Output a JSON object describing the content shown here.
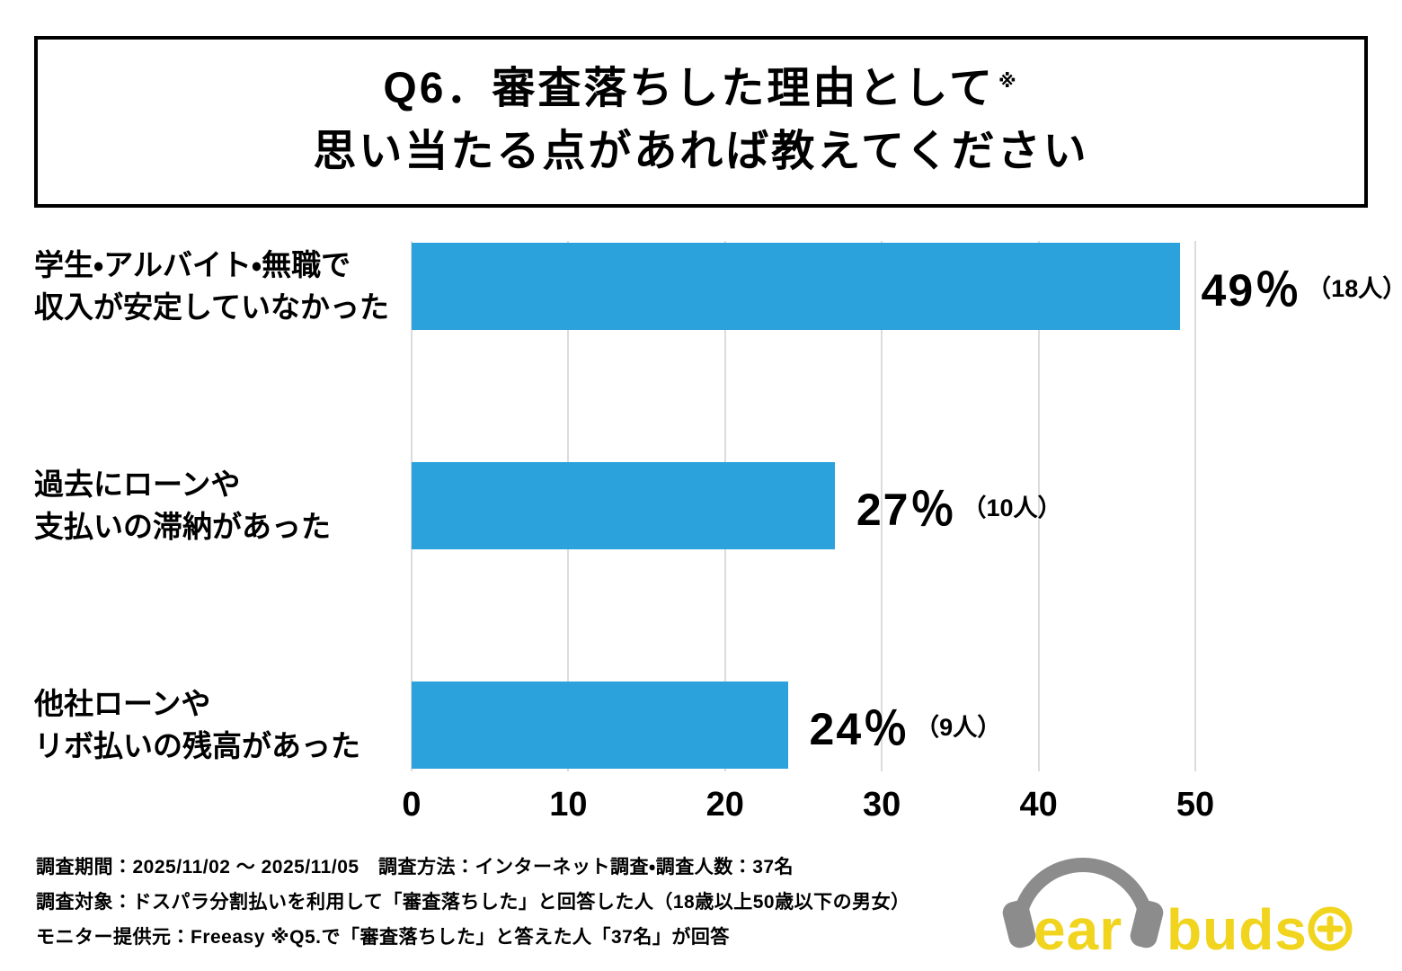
{
  "title": {
    "line1": "Q6．審査落ちした理由として",
    "ref_mark": "※",
    "line2": "思い当たる点があれば教えてください"
  },
  "chart_data": {
    "type": "bar",
    "orientation": "horizontal",
    "title": "Q6．審査落ちした理由として※ 思い当たる点があれば教えてください",
    "x_axis": {
      "min": 0,
      "max": 50,
      "ticks": [
        0,
        10,
        20,
        30,
        40,
        50
      ]
    },
    "grid": true,
    "bar_color": "#2CA2DC",
    "gridline_color": "#DCDCDC",
    "bars": [
      {
        "category": "学生・アルバイト・無職で収入が安定していなかった",
        "category_lines": [
          "学生・アルバイト・無職で",
          "収入が安定していなかった"
        ],
        "value": 49,
        "percent_label": "49％",
        "count": 18,
        "count_label": "（18人）"
      },
      {
        "category": "過去にローンや支払いの滞納があった",
        "category_lines": [
          "過去にローンや",
          "支払いの滞納があった"
        ],
        "value": 27,
        "percent_label": "27％",
        "count": 10,
        "count_label": "（10人）"
      },
      {
        "category": "他社ローンやリボ払いの残高があった",
        "category_lines": [
          "他社ローンや",
          "リボ払いの残高があった"
        ],
        "value": 24,
        "percent_label": "24％",
        "count": 9,
        "count_label": "（9人）"
      }
    ]
  },
  "footer": {
    "lines": [
      "調査期間：2025/11/02 ～ 2025/11/05　調査方法：インターネット調査・調査人数：37名",
      "調査対象：ドスパラ分割払いを利用して「審査落ちした」と回答した人（18歳以上50歳以下の男女）",
      "モニター提供元：Freeasy ※Q5.で「審査落ちした」と答えた人「37名」が回答"
    ]
  },
  "logo": {
    "text_ear": "ear",
    "text_buds": "buds",
    "color": "#F0D41E",
    "headphones_color": "#8C8C8C"
  }
}
